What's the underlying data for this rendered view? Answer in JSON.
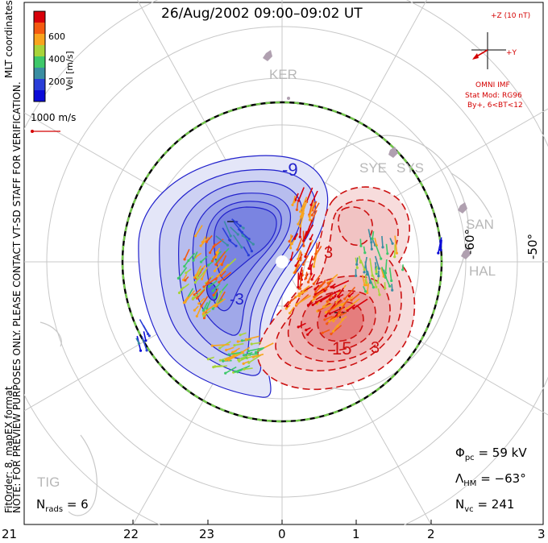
{
  "title": "26/Aug/2002 09:00–09:02 UT",
  "side_note": "NOTE: FOR PREVIEW PURPOSES ONLY. PLEASE CONTACT VT-SD STAFF FOR VERIFICATION.",
  "fit_info": "FitOrder: 8, mapEX format",
  "coords_label": "MLT coordinates",
  "colorbar": {
    "label": "Vel [m/s]",
    "ticks": [
      "600",
      "400",
      "200"
    ],
    "colors": [
      "#d8000a",
      "#f45a10",
      "#f8a41e",
      "#a8d43a",
      "#3ec86a",
      "#3a8ea2",
      "#2a3ed8",
      "#0b0bd8"
    ]
  },
  "vector_scale": "1000 m/s",
  "imf": {
    "z_label": "+Z (10 nT)",
    "y_label": "+Y",
    "source": "OMNI IMF",
    "model": "Stat Mod: RG96",
    "condition": "By+, 6<BT<12"
  },
  "stations": [
    "KER",
    "SYE",
    "SYS",
    "SAN",
    "HAL",
    "TIG"
  ],
  "lat_labels": [
    "-60°",
    "-50°"
  ],
  "contour_labels": {
    "neg": [
      "-9",
      "-3",
      "-"
    ],
    "pos": [
      "3",
      "15",
      "3"
    ]
  },
  "stats": {
    "phi_symbol": "Φ",
    "phi_sub": "pc",
    "phi_value": "= 59 kV",
    "lambda_symbol": "Λ",
    "lambda_sub": "HM",
    "lambda_value": "= −63°",
    "nvc_symbol": "N",
    "nvc_sub": "vc",
    "nvc_value": "= 241",
    "nrads_symbol": "N",
    "nrads_sub": "rads",
    "nrads_value": "= 6"
  },
  "mlt_ticks": [
    "21",
    "22",
    "23",
    "0",
    "1",
    "2",
    "3"
  ],
  "colors": {
    "negative_potential": "#5a64e6",
    "positive_potential": "#e84040",
    "boundary_dash": "#72c84a",
    "grid": "#c8c8c8",
    "station": "#b0a0b0"
  }
}
